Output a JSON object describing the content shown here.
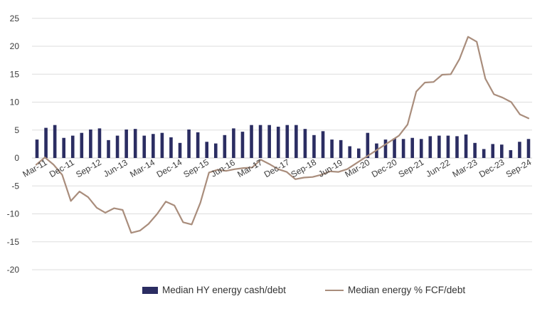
{
  "chart_data": {
    "type": "bar",
    "y_ticks": [
      "25",
      "20",
      "15",
      "10",
      "5",
      "0",
      "-5",
      "-10",
      "-15",
      "-20"
    ],
    "ylim": [
      -20,
      25
    ],
    "x_tick_labels": [
      "Mar-11",
      "Dec-11",
      "Sep-12",
      "Jun-13",
      "Mar-14",
      "Dec-14",
      "Sep-15",
      "Jun-16",
      "Mar-17",
      "Dec-17",
      "Sep-18",
      "Jun-19",
      "Mar-20",
      "Dec-20",
      "Sep-21",
      "Jun-22",
      "Mar-23",
      "Dec-23",
      "Sep-24"
    ],
    "grid": true,
    "legend_position": "bottom",
    "series": [
      {
        "name": "Median HY energy cash/debt",
        "type": "bar",
        "color": "#2b2d62",
        "values": [
          3.3,
          5.4,
          5.9,
          3.6,
          4.0,
          4.5,
          5.1,
          5.3,
          3.2,
          4.0,
          5.1,
          5.2,
          4.0,
          4.3,
          4.5,
          3.7,
          2.7,
          5.1,
          4.6,
          2.9,
          2.6,
          4.1,
          5.3,
          4.7,
          5.9,
          5.9,
          5.9,
          5.6,
          5.9,
          5.9,
          5.2,
          4.1,
          4.8,
          3.3,
          3.2,
          2.1,
          1.7,
          4.5,
          2.6,
          3.3,
          3.5,
          3.4,
          3.6,
          3.4,
          3.9,
          4.0,
          4.0,
          3.9,
          4.2,
          2.7,
          1.6,
          2.5,
          2.4,
          1.4,
          2.9,
          3.4
        ]
      },
      {
        "name": "Median energy % FCF/debt",
        "type": "line",
        "color": "#a98d7c",
        "values": [
          -1.2,
          0.1,
          -1.2,
          -3.0,
          -7.7,
          -6.0,
          -7.0,
          -8.9,
          -9.8,
          -9.0,
          -9.3,
          -13.4,
          -13.0,
          -11.8,
          -10.0,
          -7.8,
          -8.5,
          -11.5,
          -11.9,
          -8.0,
          -2.6,
          -2.1,
          -2.3,
          -2.0,
          -1.8,
          -1.7,
          -0.3,
          -1.1,
          -2.0,
          -2.5,
          -3.8,
          -3.5,
          -3.4,
          -3.0,
          -2.4,
          -2.5,
          -2.0,
          -1.0,
          0.0,
          1.0,
          2.0,
          3.0,
          4.0,
          6.0,
          11.9,
          13.5,
          13.6,
          14.9,
          15.0,
          17.7,
          21.7,
          20.8,
          14.2,
          11.4,
          10.8,
          10.0,
          7.8,
          7.1
        ]
      }
    ]
  }
}
